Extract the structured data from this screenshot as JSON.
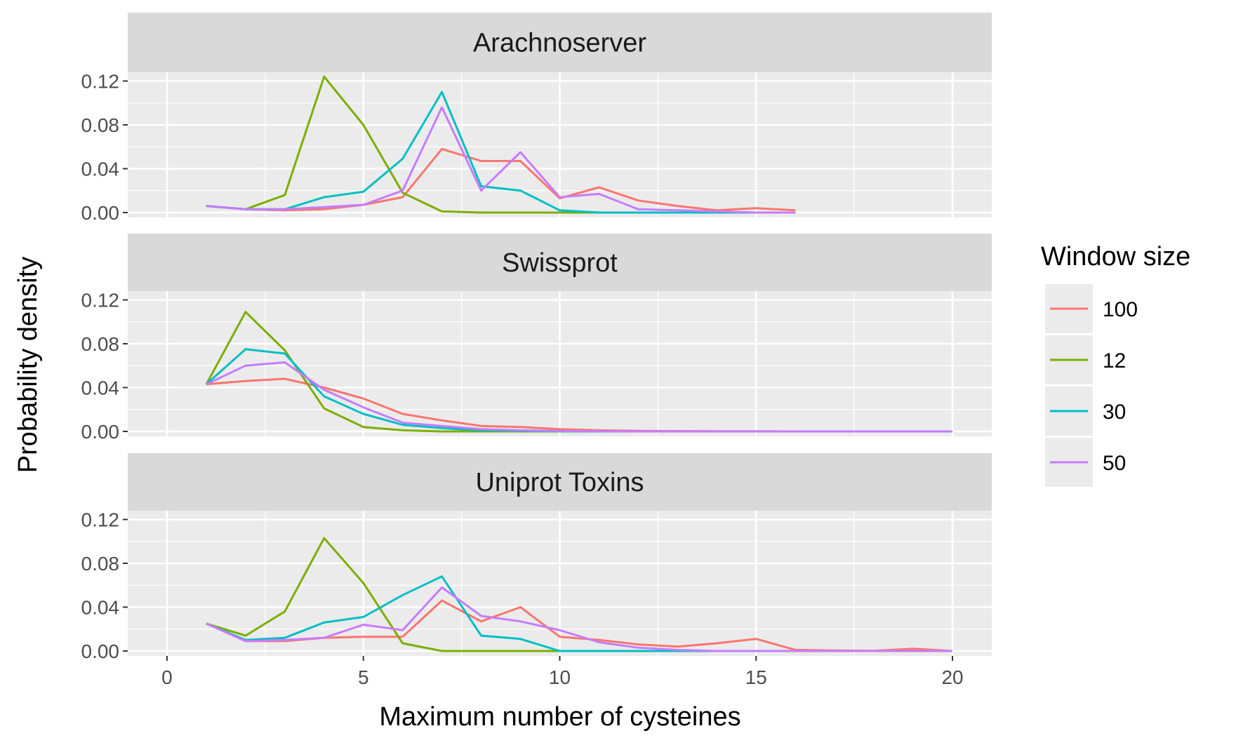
{
  "chart_data": {
    "type": "line",
    "xlabel": "Maximum number of cysteines",
    "ylabel": "Probability density",
    "xlim": [
      -1,
      21
    ],
    "ylim": [
      -0.0045,
      0.128
    ],
    "x_ticks": [
      0,
      5,
      10,
      15,
      20
    ],
    "x_tick_labels": [
      "0",
      "5",
      "10",
      "15",
      "20"
    ],
    "y_ticks": [
      0,
      0.04,
      0.08,
      0.12
    ],
    "y_tick_labels": [
      "0.00",
      "0.04",
      "0.08",
      "0.12"
    ],
    "grid": true,
    "legend": {
      "title": "Window size",
      "position": "right",
      "entries": [
        {
          "label": "100",
          "color": "#F8766D"
        },
        {
          "label": "12",
          "color": "#7CAE00"
        },
        {
          "label": "30",
          "color": "#00BFC4"
        },
        {
          "label": "50",
          "color": "#C77CFF"
        }
      ]
    },
    "panels": [
      {
        "title": "Arachnoserver",
        "series": [
          {
            "name": "100",
            "color": "#F8766D",
            "x": [
              1,
              2,
              3,
              4,
              5,
              6,
              7,
              8,
              9,
              10,
              11,
              12,
              13,
              14,
              15,
              16
            ],
            "y": [
              0.006,
              0.003,
              0.002,
              0.003,
              0.007,
              0.014,
              0.058,
              0.047,
              0.047,
              0.013,
              0.023,
              0.011,
              0.006,
              0.002,
              0.004,
              0.002
            ]
          },
          {
            "name": "12",
            "color": "#7CAE00",
            "x": [
              1,
              2,
              3,
              4,
              5,
              6,
              7,
              8,
              9,
              10,
              11,
              12,
              13,
              14,
              15,
              16
            ],
            "y": [
              0.006,
              0.003,
              0.016,
              0.124,
              0.08,
              0.018,
              0.001,
              0,
              0,
              0,
              0,
              0,
              0,
              0,
              0,
              0
            ]
          },
          {
            "name": "30",
            "color": "#00BFC4",
            "x": [
              1,
              2,
              3,
              4,
              5,
              6,
              7,
              8,
              9,
              10,
              11,
              12,
              13,
              14,
              15,
              16
            ],
            "y": [
              0.006,
              0.003,
              0.003,
              0.014,
              0.019,
              0.049,
              0.11,
              0.024,
              0.02,
              0.002,
              0,
              0,
              0,
              0,
              0,
              0
            ]
          },
          {
            "name": "50",
            "color": "#C77CFF",
            "x": [
              1,
              2,
              3,
              4,
              5,
              6,
              7,
              8,
              9,
              10,
              11,
              12,
              13,
              14,
              15,
              16
            ],
            "y": [
              0.006,
              0.003,
              0.003,
              0.005,
              0.007,
              0.02,
              0.096,
              0.02,
              0.055,
              0.014,
              0.017,
              0.003,
              0.002,
              0.001,
              0,
              0
            ]
          }
        ]
      },
      {
        "title": "Swissprot",
        "series": [
          {
            "name": "100",
            "color": "#F8766D",
            "x": [
              1,
              2,
              3,
              4,
              5,
              6,
              7,
              8,
              9,
              10,
              11,
              12,
              13,
              14,
              15,
              16,
              17,
              18,
              19,
              20
            ],
            "y": [
              0.043,
              0.046,
              0.048,
              0.04,
              0.03,
              0.016,
              0.01,
              0.005,
              0.004,
              0.002,
              0.001,
              0.0005,
              0.0003,
              0.0002,
              0.0001,
              0,
              0,
              0,
              0,
              0
            ]
          },
          {
            "name": "12",
            "color": "#7CAE00",
            "x": [
              1,
              2,
              3,
              4,
              5,
              6,
              7,
              8,
              9,
              10,
              11,
              12,
              13,
              14,
              15,
              16,
              17,
              18,
              19,
              20
            ],
            "y": [
              0.043,
              0.109,
              0.074,
              0.021,
              0.004,
              0.001,
              0,
              0,
              0,
              0,
              0,
              0,
              0,
              0,
              0,
              0,
              0,
              0,
              0,
              0
            ]
          },
          {
            "name": "30",
            "color": "#00BFC4",
            "x": [
              1,
              2,
              3,
              4,
              5,
              6,
              7,
              8,
              9,
              10,
              11,
              12,
              13,
              14,
              15,
              16,
              17,
              18,
              19,
              20
            ],
            "y": [
              0.043,
              0.075,
              0.071,
              0.032,
              0.016,
              0.006,
              0.003,
              0.001,
              0.0005,
              0.0002,
              0,
              0,
              0,
              0,
              0,
              0,
              0,
              0,
              0,
              0
            ]
          },
          {
            "name": "50",
            "color": "#C77CFF",
            "x": [
              1,
              2,
              3,
              4,
              5,
              6,
              7,
              8,
              9,
              10,
              11,
              12,
              13,
              14,
              15,
              16,
              17,
              18,
              19,
              20
            ],
            "y": [
              0.043,
              0.06,
              0.063,
              0.038,
              0.022,
              0.008,
              0.005,
              0.002,
              0.001,
              0.0005,
              0.0002,
              0,
              0,
              0,
              0,
              0,
              0,
              0,
              0,
              0
            ]
          }
        ]
      },
      {
        "title": "Uniprot Toxins",
        "series": [
          {
            "name": "100",
            "color": "#F8766D",
            "x": [
              1,
              2,
              3,
              4,
              5,
              6,
              7,
              8,
              9,
              10,
              11,
              12,
              13,
              14,
              15,
              16,
              17,
              18,
              19,
              20
            ],
            "y": [
              0.025,
              0.009,
              0.009,
              0.012,
              0.013,
              0.013,
              0.046,
              0.027,
              0.04,
              0.013,
              0.01,
              0.006,
              0.004,
              0.007,
              0.011,
              0.001,
              0.0005,
              0.0002,
              0.002,
              0
            ]
          },
          {
            "name": "12",
            "color": "#7CAE00",
            "x": [
              1,
              2,
              3,
              4,
              5,
              6,
              7,
              8,
              9,
              10,
              11,
              12,
              13,
              14,
              15,
              16,
              17,
              18,
              19,
              20
            ],
            "y": [
              0.025,
              0.014,
              0.036,
              0.103,
              0.062,
              0.007,
              0,
              0,
              0,
              0,
              0,
              0,
              0,
              0,
              0,
              0,
              0,
              0,
              0,
              0
            ]
          },
          {
            "name": "30",
            "color": "#00BFC4",
            "x": [
              1,
              2,
              3,
              4,
              5,
              6,
              7,
              8,
              9,
              10,
              11,
              12,
              13,
              14,
              15,
              16,
              17,
              18,
              19,
              20
            ],
            "y": [
              0.025,
              0.01,
              0.012,
              0.026,
              0.031,
              0.051,
              0.068,
              0.014,
              0.011,
              0,
              0,
              0,
              0,
              0,
              0,
              0,
              0,
              0,
              0,
              0
            ]
          },
          {
            "name": "50",
            "color": "#C77CFF",
            "x": [
              1,
              2,
              3,
              4,
              5,
              6,
              7,
              8,
              9,
              10,
              11,
              12,
              13,
              14,
              15,
              16,
              17,
              18,
              19,
              20
            ],
            "y": [
              0.025,
              0.009,
              0.01,
              0.012,
              0.024,
              0.019,
              0.058,
              0.032,
              0.027,
              0.019,
              0.008,
              0.003,
              0.001,
              0,
              0,
              0,
              0,
              0,
              0,
              0
            ]
          }
        ]
      }
    ]
  }
}
